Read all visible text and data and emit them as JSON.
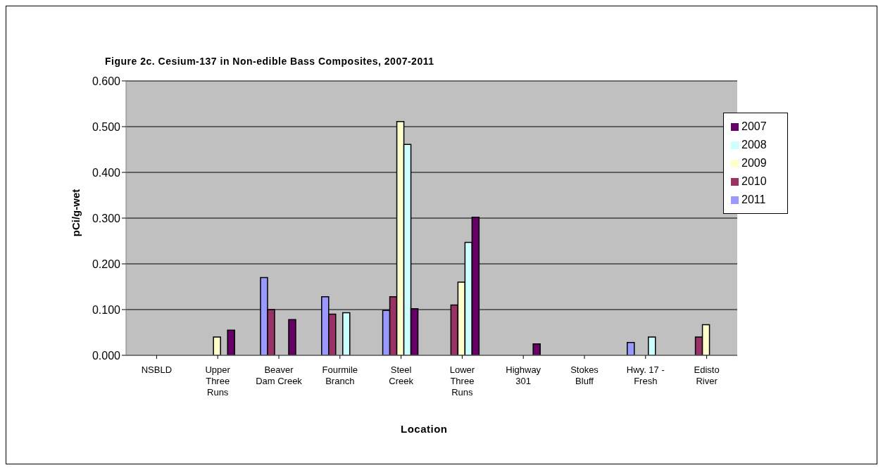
{
  "chart_data": {
    "type": "bar",
    "title": "Figure 2c. Cesium-137 in Non-edible Bass Composites, 2007-2011",
    "xlabel": "Location",
    "ylabel": "pCi/g-wet",
    "categories": [
      "NSBLD",
      "Upper Three Runs",
      "Beaver Dam Creek",
      "Fourmile Branch",
      "Steel Creek",
      "Lower Three Runs",
      "Highway 301",
      "Stokes Bluff",
      "Hwy. 17 - Fresh",
      "Edisto River"
    ],
    "series": [
      {
        "name": "2011",
        "color": "#9999ff",
        "values": [
          null,
          null,
          0.17,
          0.128,
          0.098,
          null,
          null,
          null,
          0.028,
          null
        ]
      },
      {
        "name": "2010",
        "color": "#993366",
        "values": [
          null,
          null,
          0.1,
          0.09,
          0.128,
          0.11,
          null,
          null,
          null,
          0.04
        ]
      },
      {
        "name": "2009",
        "color": "#ffffcc",
        "values": [
          null,
          0.04,
          null,
          null,
          0.511,
          0.16,
          null,
          null,
          null,
          0.067
        ]
      },
      {
        "name": "2008",
        "color": "#ccffff",
        "values": [
          null,
          null,
          null,
          0.093,
          0.461,
          0.247,
          null,
          null,
          0.04,
          null
        ]
      },
      {
        "name": "2007",
        "color": "#660066",
        "values": [
          null,
          0.055,
          0.078,
          null,
          0.102,
          0.302,
          0.025,
          null,
          null,
          null
        ]
      }
    ],
    "ylim": [
      0,
      0.6
    ],
    "yticks": [
      {
        "value": 0,
        "label": "0.000"
      },
      {
        "value": 0.1,
        "label": "0.100"
      },
      {
        "value": 0.2,
        "label": "0.200"
      },
      {
        "value": 0.3,
        "label": "0.300"
      },
      {
        "value": 0.4,
        "label": "0.400"
      },
      {
        "value": 0.5,
        "label": "0.500"
      },
      {
        "value": 0.6,
        "label": "0.600"
      }
    ],
    "grid": "y",
    "legend": "top right"
  }
}
